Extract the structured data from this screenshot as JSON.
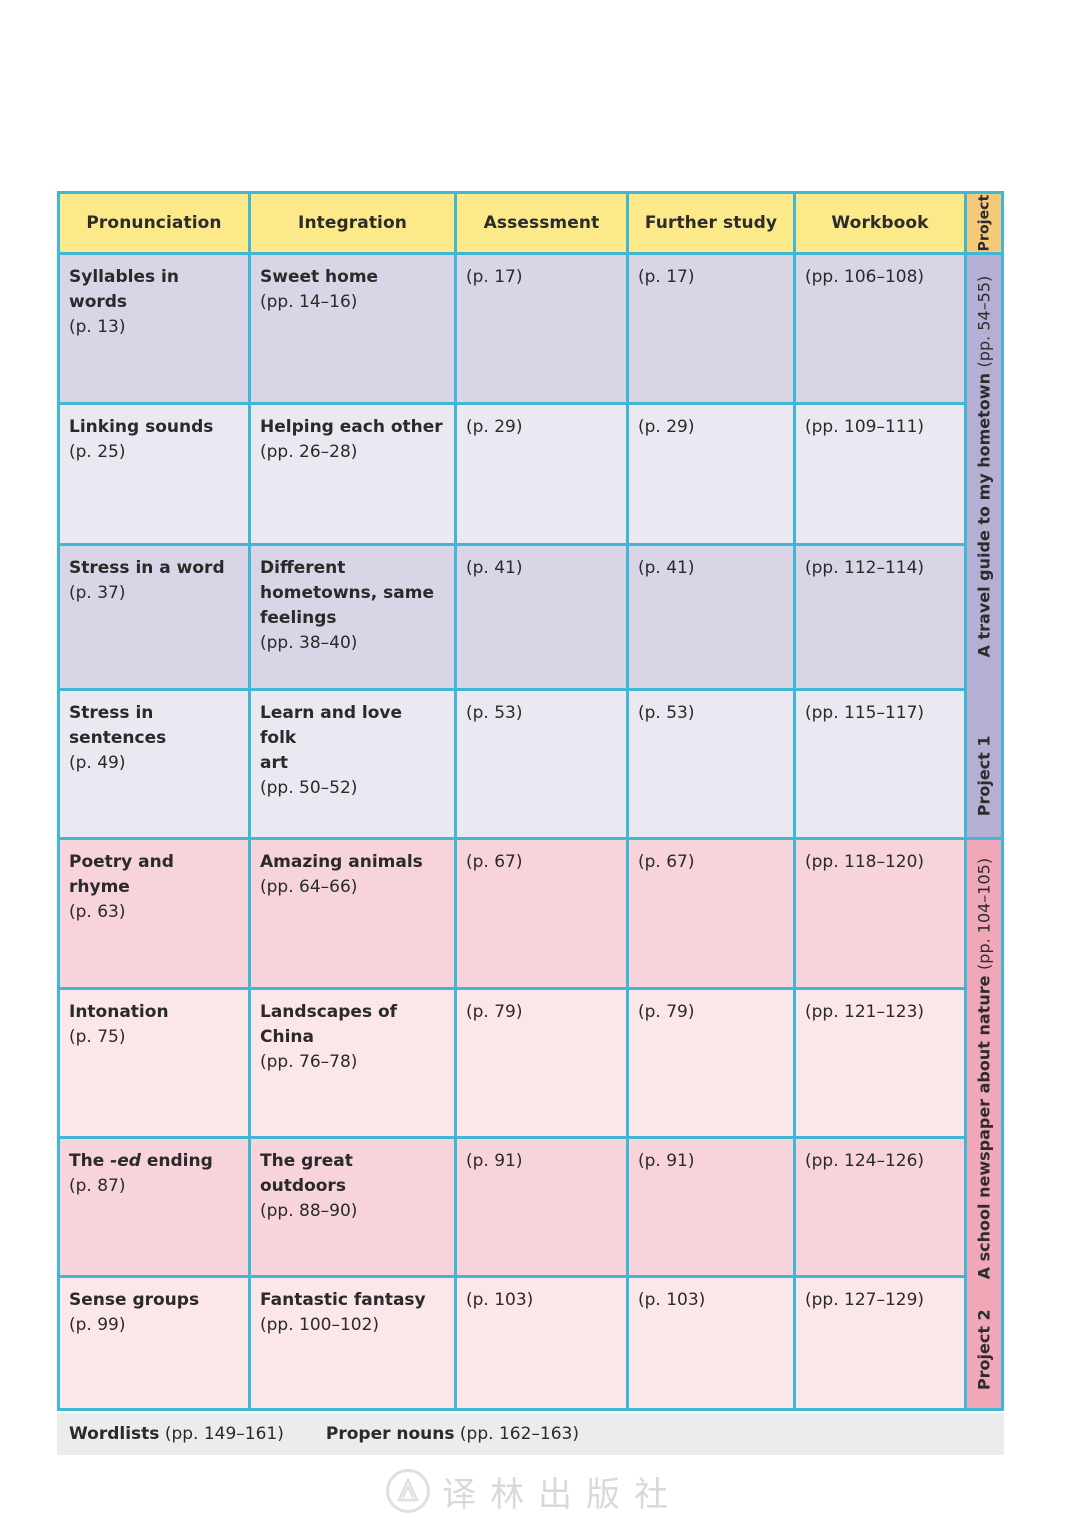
{
  "headers": {
    "pronunciation": "Pronunciation",
    "integration": "Integration",
    "assessment": "Assessment",
    "further": "Further study",
    "workbook": "Workbook",
    "project": "Project"
  },
  "rows": [
    {
      "pron_title": "Syllables in words",
      "pron_page": "(p. 13)",
      "integ": [
        "Sweet home"
      ],
      "integ_page": "(pp. 14–16)",
      "assess": "(p. 17)",
      "further": "(p. 17)",
      "workbook": "(pp. 106–108)"
    },
    {
      "pron_title": "Linking sounds",
      "pron_page": "(p. 25)",
      "integ": [
        "Helping each other"
      ],
      "integ_page": "(pp. 26–28)",
      "assess": "(p. 29)",
      "further": "(p. 29)",
      "workbook": "(pp. 109–111)"
    },
    {
      "pron_title": "Stress in a word",
      "pron_page": "(p. 37)",
      "integ": [
        "Different",
        "hometowns, same",
        "feelings"
      ],
      "integ_page": "(pp. 38–40)",
      "assess": "(p. 41)",
      "further": "(p. 41)",
      "workbook": "(pp. 112–114)"
    },
    {
      "pron_title": "Stress in sentences",
      "pron_page": "(p. 49)",
      "integ": [
        "Learn and love folk",
        "art"
      ],
      "integ_page": "(pp. 50–52)",
      "assess": "(p. 53)",
      "further": "(p. 53)",
      "workbook": "(pp. 115–117)"
    },
    {
      "pron_title": "Poetry and rhyme",
      "pron_page": "(p. 63)",
      "integ": [
        "Amazing animals"
      ],
      "integ_page": "(pp. 64–66)",
      "assess": "(p. 67)",
      "further": "(p. 67)",
      "workbook": "(pp. 118–120)"
    },
    {
      "pron_title": "Intonation",
      "pron_page": "(p. 75)",
      "integ": [
        "Landscapes of China"
      ],
      "integ_page": "(pp. 76–78)",
      "assess": "(p. 79)",
      "further": "(p. 79)",
      "workbook": "(pp. 121–123)"
    },
    {
      "pron_title_pre": "The ",
      "pron_title_em": "-ed",
      "pron_title_post": " ending",
      "pron_page": "(p. 87)",
      "integ": [
        "The great outdoors"
      ],
      "integ_page": "(pp. 88–90)",
      "assess": "(p. 91)",
      "further": "(p. 91)",
      "workbook": "(pp. 124–126)"
    },
    {
      "pron_title": "Sense groups",
      "pron_page": "(p. 99)",
      "integ": [
        "Fantastic fantasy"
      ],
      "integ_page": "(pp. 100–102)",
      "assess": "(p. 103)",
      "further": "(p. 103)",
      "workbook": "(pp. 127–129)"
    }
  ],
  "projects": [
    {
      "label": "Project 1",
      "title": "A travel guide to my hometown",
      "pages": "(pp. 54–55)"
    },
    {
      "label": "Project 2",
      "title": "A school newspaper about nature",
      "pages": "(pp. 104–105)"
    }
  ],
  "footer": {
    "wordlists_label": "Wordlists",
    "wordlists_pages": "(pp. 149–161)",
    "proper_label": "Proper nouns",
    "proper_pages": "(pp. 162–163)"
  },
  "watermark": {
    "text": "译林出版社",
    "logo_icon": "publisher-logo-icon"
  },
  "colors": {
    "border": "#3fb8d6",
    "header": "#fbe98a",
    "project_header": "#f5c97a",
    "project1_side": "#b7aed3",
    "project2_side": "#f0a8b8"
  }
}
